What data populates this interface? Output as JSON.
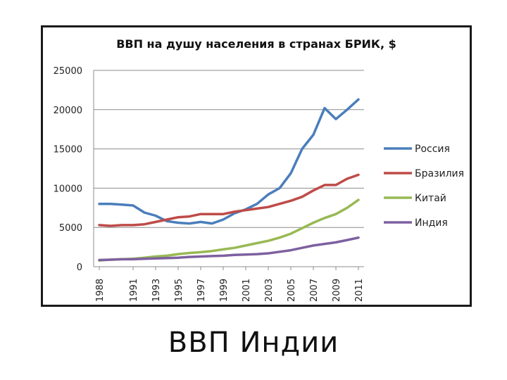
{
  "slide": {
    "title": "ВВП Индии"
  },
  "chart_data": {
    "type": "line",
    "title": "ВВП на душу населения в странах БРИК, $",
    "xlabel": "",
    "ylabel": "",
    "ylim": [
      0,
      25000
    ],
    "yticks": [
      0,
      5000,
      10000,
      15000,
      20000,
      25000
    ],
    "grid": "horizontal",
    "legend_position": "right",
    "x": [
      1988,
      1989,
      1990,
      1991,
      1992,
      1993,
      1994,
      1995,
      1996,
      1997,
      1998,
      1999,
      2000,
      2001,
      2002,
      2003,
      2004,
      2005,
      2006,
      2007,
      2008,
      2009,
      2010,
      2011
    ],
    "x_tick_labels": [
      "1988",
      "1991",
      "1993",
      "1995",
      "1997",
      "1999",
      "2001",
      "2003",
      "2005",
      "2007",
      "2009",
      "2011"
    ],
    "x_tick_values": [
      1988,
      1991,
      1993,
      1995,
      1997,
      1999,
      2001,
      2003,
      2005,
      2007,
      2009,
      2011
    ],
    "series": [
      {
        "name": "Россия",
        "color": "#4a7ebb",
        "values": [
          8000,
          8000,
          7900,
          7800,
          6900,
          6500,
          5800,
          5600,
          5500,
          5700,
          5500,
          6000,
          6800,
          7300,
          8000,
          9200,
          10000,
          11900,
          15000,
          16800,
          20200,
          18800,
          20000,
          21300
        ]
      },
      {
        "name": "Бразилия",
        "color": "#be4b48",
        "values": [
          5300,
          5200,
          5300,
          5300,
          5400,
          5700,
          6000,
          6300,
          6400,
          6700,
          6700,
          6700,
          7000,
          7200,
          7400,
          7600,
          8000,
          8400,
          8900,
          9700,
          10400,
          10400,
          11200,
          11700
        ]
      },
      {
        "name": "Китай",
        "color": "#98b954",
        "values": [
          800,
          900,
          950,
          1000,
          1150,
          1300,
          1400,
          1600,
          1750,
          1850,
          2000,
          2200,
          2400,
          2700,
          3000,
          3300,
          3700,
          4200,
          4900,
          5600,
          6200,
          6700,
          7500,
          8500
        ]
      },
      {
        "name": "Индия",
        "color": "#7d60a0",
        "values": [
          850,
          900,
          950,
          950,
          1000,
          1050,
          1100,
          1150,
          1250,
          1300,
          1350,
          1400,
          1500,
          1550,
          1600,
          1700,
          1900,
          2100,
          2400,
          2700,
          2900,
          3100,
          3400,
          3700
        ]
      }
    ]
  }
}
